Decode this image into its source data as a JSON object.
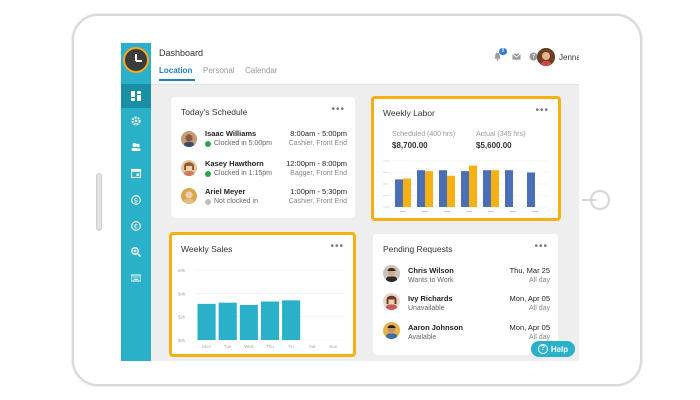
{
  "app": {
    "logo_icon": "clock-gear-icon"
  },
  "sidebar": {
    "items": [
      {
        "name": "dashboard",
        "icon": "dashboard-icon",
        "active": true
      },
      {
        "name": "settings",
        "icon": "gear-icon"
      },
      {
        "name": "people",
        "icon": "users-icon"
      },
      {
        "name": "calendar",
        "icon": "calendar-icon"
      },
      {
        "name": "payroll",
        "icon": "dollar-icon"
      },
      {
        "name": "currency",
        "icon": "euro-icon"
      },
      {
        "name": "search",
        "icon": "zoom-icon"
      },
      {
        "name": "keyboard",
        "icon": "keyboard-icon"
      }
    ]
  },
  "header": {
    "title": "Dashboard",
    "tabs": [
      "Location",
      "Personal",
      "Calendar"
    ],
    "notifications_count": "8",
    "user_name": "Jenna"
  },
  "schedule": {
    "title": "Today's Schedule",
    "menu": "•••",
    "rows": [
      {
        "name": "Isaac Williams",
        "status": "Clocked in 5:00pm",
        "time": "8:00am - 5:00pm",
        "role": "Cashier, Front End",
        "status_color": "#2aa64d"
      },
      {
        "name": "Kasey Hawthorn",
        "status": "Clocked in 1:15pm",
        "time": "12:00pm - 8:00pm",
        "role": "Bagger, Front End",
        "status_color": "#2aa64d"
      },
      {
        "name": "Ariel Meyer",
        "status": "Not clocked in",
        "time": "1:00pm - 5:30pm",
        "role": "Cashier, Front End",
        "status_color": "#bfbfbf"
      }
    ]
  },
  "labor": {
    "title": "Weekly Labor",
    "menu": "•••",
    "scheduled_label": "Scheduled (400 hrs)",
    "scheduled_value": "$8,700.00",
    "actual_label": "Actual (345 hrs)",
    "actual_value": "$5,600.00"
  },
  "sales": {
    "title": "Weekly Sales",
    "menu": "•••"
  },
  "requests": {
    "title": "Pending Requests",
    "menu": "•••",
    "rows": [
      {
        "name": "Chris Wilson",
        "type": "Wants to Work",
        "date": "Thu, Mar 25",
        "duration": "All day"
      },
      {
        "name": "Ivy Richards",
        "type": "Unavailable",
        "date": "Mon, Apr 05",
        "duration": "All day"
      },
      {
        "name": "Aaron Johnson",
        "type": "Available",
        "date": "Mon, Apr 05",
        "duration": "All day"
      }
    ]
  },
  "help": {
    "label": "Help",
    "icon": "question-icon"
  },
  "chart_data": [
    {
      "type": "bar",
      "categories": [
        "",
        "",
        "",
        "",
        "",
        "",
        ""
      ],
      "series": [
        {
          "values": [
            60,
            80,
            80,
            78,
            80,
            80,
            75
          ]
        },
        {
          "values": [
            62,
            78,
            68,
            90,
            80,
            0,
            0
          ]
        }
      ],
      "ylim": [
        0,
        100
      ],
      "colors": [
        "#4a6fb5",
        "#f5b013"
      ],
      "grid": true
    },
    {
      "type": "bar",
      "categories": [
        "Mon",
        "Tue",
        "Wed",
        "Thu",
        "Fri",
        "Sat",
        "Sun"
      ],
      "values": [
        31,
        32,
        30,
        33,
        34,
        0,
        0
      ],
      "yticks": [
        "60k",
        "$4k",
        "$2k",
        "$0k"
      ],
      "ylim": [
        0,
        60
      ],
      "colors": [
        "#2bb0c9"
      ],
      "grid": true
    }
  ]
}
